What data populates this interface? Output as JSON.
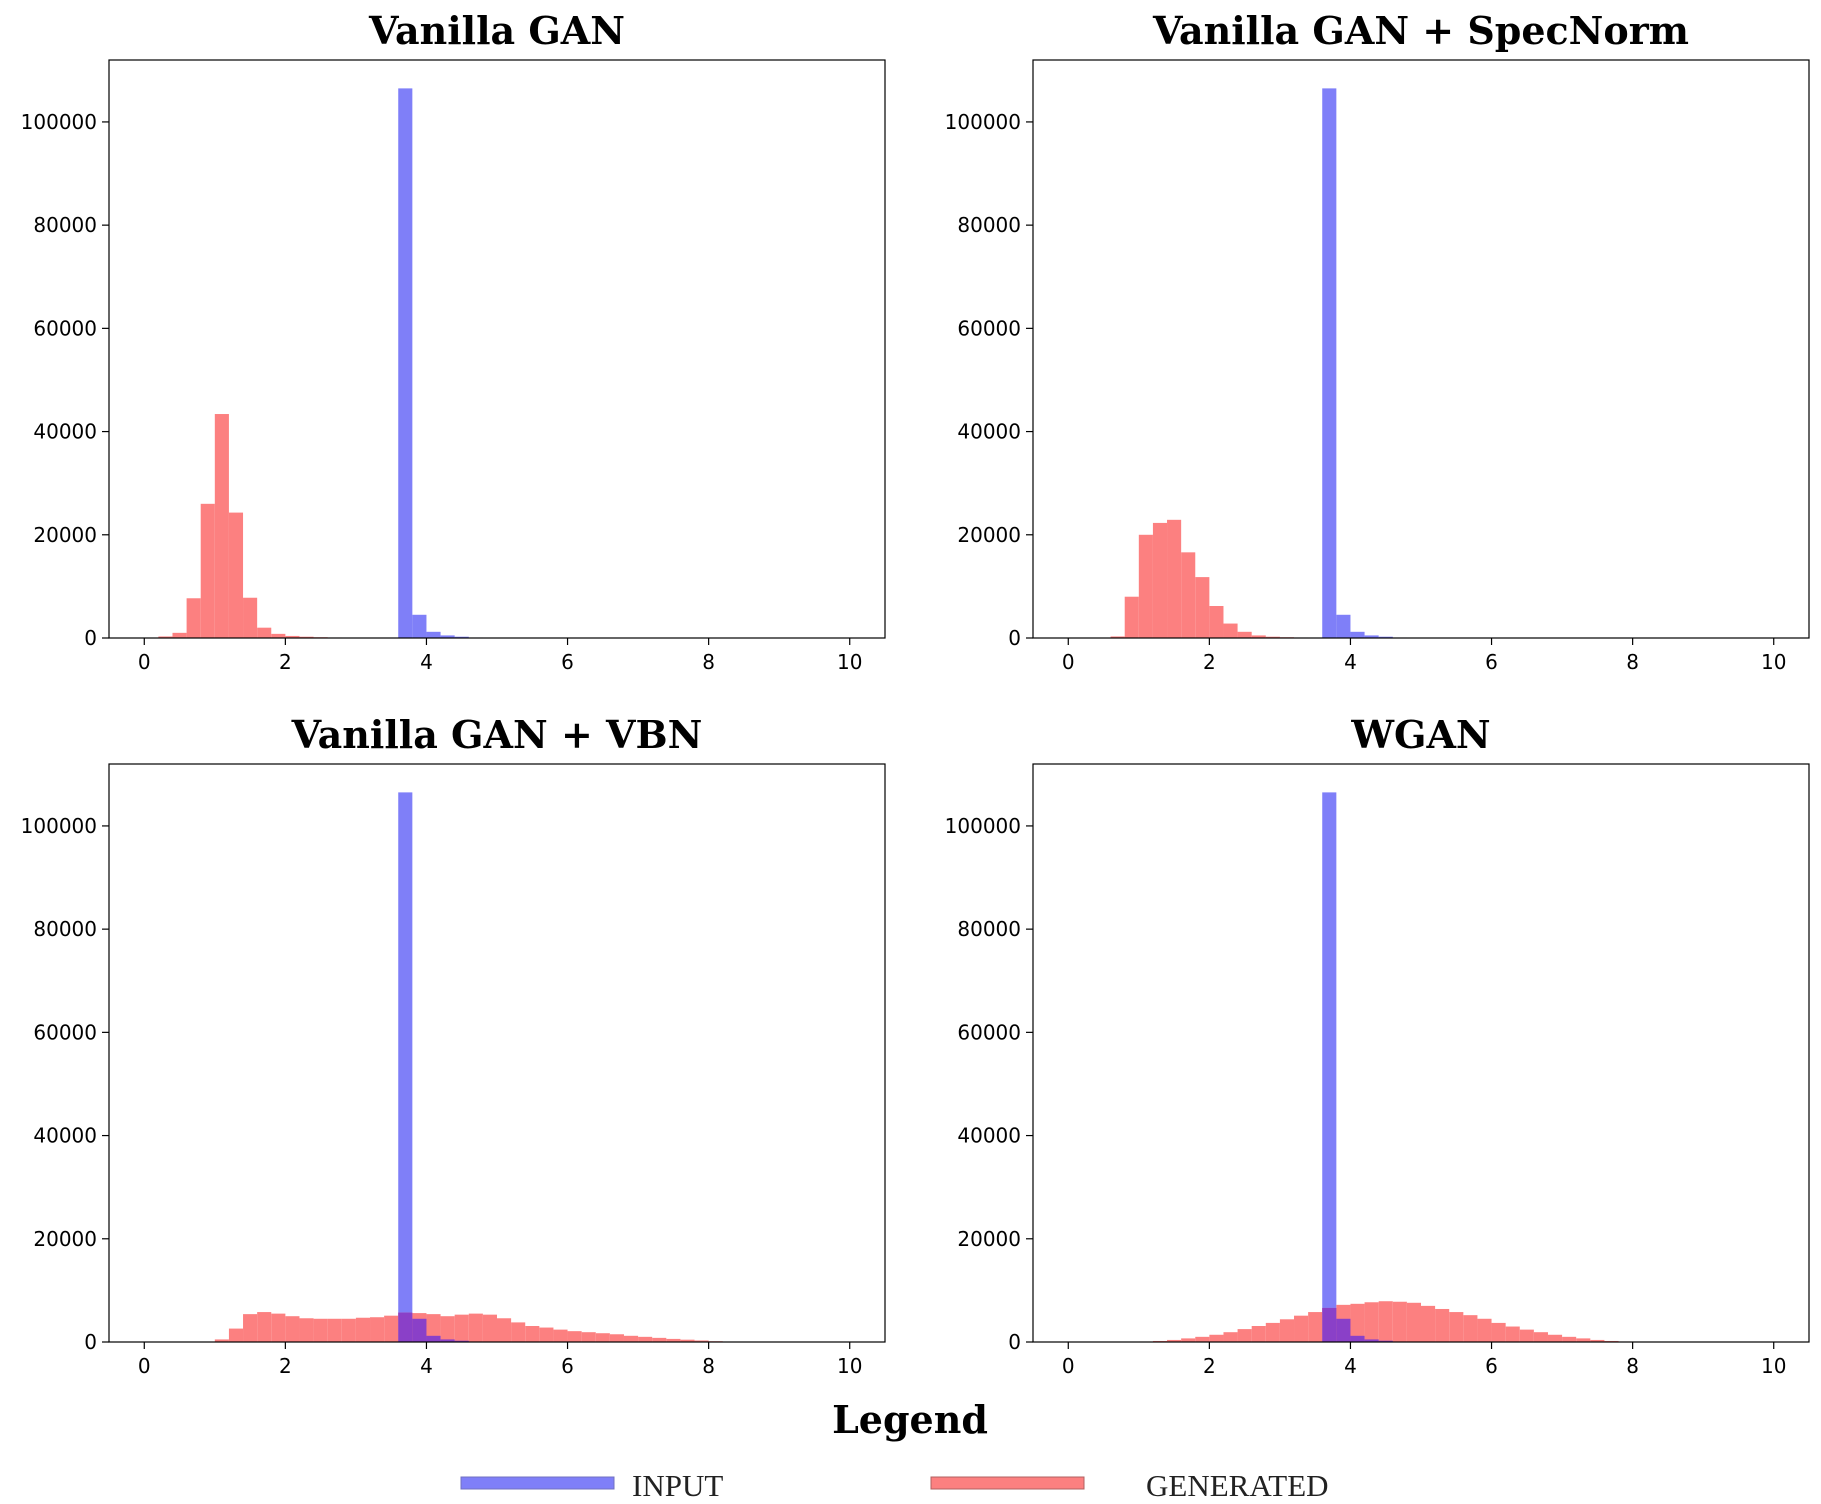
{
  "legend": {
    "title": "Legend",
    "entries": [
      {
        "label": "INPUT",
        "color": "#7f7ff8"
      },
      {
        "label": "GENERATED",
        "color": "#fc8080"
      }
    ]
  },
  "colors": {
    "input": "#7f7ff8",
    "generated": "#fc8080",
    "overlap": "#8a40c8"
  },
  "chart_data": [
    {
      "type": "bar",
      "title": "Vanilla GAN",
      "xlim": [
        -0.5,
        10.5
      ],
      "ylim": [
        0,
        112000
      ],
      "xticks": [
        "0",
        "2",
        "4",
        "6",
        "8",
        "10"
      ],
      "yticks": [
        "0",
        "20000",
        "40000",
        "60000",
        "80000",
        "100000"
      ],
      "bin_width": 0.2,
      "series": [
        {
          "name": "INPUT",
          "bins": [
            [
              3.7,
              106500
            ],
            [
              3.9,
              4500
            ],
            [
              4.1,
              1200
            ],
            [
              4.3,
              500
            ],
            [
              4.5,
              250
            ],
            [
              4.7,
              100
            ]
          ]
        },
        {
          "name": "GENERATED",
          "bins": [
            [
              0.3,
              300
            ],
            [
              0.5,
              1000
            ],
            [
              0.7,
              7700
            ],
            [
              0.9,
              26000
            ],
            [
              1.1,
              43400
            ],
            [
              1.3,
              24300
            ],
            [
              1.5,
              7800
            ],
            [
              1.7,
              2000
            ],
            [
              1.9,
              800
            ],
            [
              2.1,
              400
            ],
            [
              2.3,
              250
            ],
            [
              2.5,
              150
            ],
            [
              2.7,
              100
            ]
          ]
        }
      ]
    },
    {
      "type": "bar",
      "title": "Vanilla GAN + SpecNorm",
      "xlim": [
        -0.5,
        10.5
      ],
      "ylim": [
        0,
        112000
      ],
      "xticks": [
        "0",
        "2",
        "4",
        "6",
        "8",
        "10"
      ],
      "yticks": [
        "0",
        "20000",
        "40000",
        "60000",
        "80000",
        "100000"
      ],
      "bin_width": 0.2,
      "series": [
        {
          "name": "INPUT",
          "bins": [
            [
              3.7,
              106500
            ],
            [
              3.9,
              4500
            ],
            [
              4.1,
              1200
            ],
            [
              4.3,
              500
            ],
            [
              4.5,
              250
            ],
            [
              4.7,
              100
            ]
          ]
        },
        {
          "name": "GENERATED",
          "bins": [
            [
              0.7,
              300
            ],
            [
              0.9,
              8000
            ],
            [
              1.1,
              20000
            ],
            [
              1.3,
              22300
            ],
            [
              1.5,
              22900
            ],
            [
              1.7,
              16600
            ],
            [
              1.9,
              11800
            ],
            [
              2.1,
              6200
            ],
            [
              2.3,
              2800
            ],
            [
              2.5,
              1200
            ],
            [
              2.7,
              500
            ],
            [
              2.9,
              250
            ],
            [
              3.1,
              150
            ],
            [
              3.3,
              100
            ],
            [
              3.5,
              50
            ]
          ]
        }
      ]
    },
    {
      "type": "bar",
      "title": "Vanilla GAN + VBN",
      "xlim": [
        -0.5,
        10.5
      ],
      "ylim": [
        0,
        112000
      ],
      "xticks": [
        "0",
        "2",
        "4",
        "6",
        "8",
        "10"
      ],
      "yticks": [
        "0",
        "20000",
        "40000",
        "60000",
        "80000",
        "100000"
      ],
      "bin_width": 0.2,
      "series": [
        {
          "name": "INPUT",
          "bins": [
            [
              3.7,
              106500
            ],
            [
              3.9,
              4500
            ],
            [
              4.1,
              1200
            ],
            [
              4.3,
              500
            ],
            [
              4.5,
              250
            ],
            [
              4.7,
              100
            ]
          ]
        },
        {
          "name": "GENERATED",
          "bins": [
            [
              1.1,
              500
            ],
            [
              1.3,
              2600
            ],
            [
              1.5,
              5400
            ],
            [
              1.7,
              5800
            ],
            [
              1.9,
              5500
            ],
            [
              2.1,
              5000
            ],
            [
              2.3,
              4600
            ],
            [
              2.5,
              4500
            ],
            [
              2.7,
              4500
            ],
            [
              2.9,
              4500
            ],
            [
              3.1,
              4700
            ],
            [
              3.3,
              4800
            ],
            [
              3.5,
              5100
            ],
            [
              3.7,
              5700
            ],
            [
              3.9,
              5600
            ],
            [
              4.1,
              5400
            ],
            [
              4.3,
              5000
            ],
            [
              4.5,
              5300
            ],
            [
              4.7,
              5500
            ],
            [
              4.9,
              5300
            ],
            [
              5.1,
              4600
            ],
            [
              5.3,
              3800
            ],
            [
              5.5,
              3100
            ],
            [
              5.7,
              2800
            ],
            [
              5.9,
              2400
            ],
            [
              6.1,
              2100
            ],
            [
              6.3,
              1900
            ],
            [
              6.5,
              1700
            ],
            [
              6.7,
              1500
            ],
            [
              6.9,
              1200
            ],
            [
              7.1,
              1000
            ],
            [
              7.3,
              800
            ],
            [
              7.5,
              600
            ],
            [
              7.7,
              450
            ],
            [
              7.9,
              300
            ],
            [
              8.1,
              150
            ],
            [
              8.3,
              80
            ]
          ]
        }
      ]
    },
    {
      "type": "bar",
      "title": "WGAN",
      "xlim": [
        -0.5,
        10.5
      ],
      "ylim": [
        0,
        112000
      ],
      "xticks": [
        "0",
        "2",
        "4",
        "6",
        "8",
        "10"
      ],
      "yticks": [
        "0",
        "20000",
        "40000",
        "60000",
        "80000",
        "100000"
      ],
      "bin_width": 0.2,
      "series": [
        {
          "name": "INPUT",
          "bins": [
            [
              3.7,
              106500
            ],
            [
              3.9,
              4500
            ],
            [
              4.1,
              1200
            ],
            [
              4.3,
              500
            ],
            [
              4.5,
              250
            ],
            [
              4.7,
              100
            ]
          ]
        },
        {
          "name": "GENERATED",
          "bins": [
            [
              1.1,
              100
            ],
            [
              1.3,
              200
            ],
            [
              1.5,
              400
            ],
            [
              1.7,
              700
            ],
            [
              1.9,
              1000
            ],
            [
              2.1,
              1400
            ],
            [
              2.3,
              1900
            ],
            [
              2.5,
              2500
            ],
            [
              2.7,
              3100
            ],
            [
              2.9,
              3700
            ],
            [
              3.1,
              4400
            ],
            [
              3.3,
              5100
            ],
            [
              3.5,
              5800
            ],
            [
              3.7,
              6600
            ],
            [
              3.9,
              7200
            ],
            [
              4.1,
              7400
            ],
            [
              4.3,
              7700
            ],
            [
              4.5,
              7900
            ],
            [
              4.7,
              7800
            ],
            [
              4.9,
              7600
            ],
            [
              5.1,
              7000
            ],
            [
              5.3,
              6400
            ],
            [
              5.5,
              5800
            ],
            [
              5.7,
              5200
            ],
            [
              5.9,
              4500
            ],
            [
              6.1,
              3700
            ],
            [
              6.3,
              3000
            ],
            [
              6.5,
              2400
            ],
            [
              6.7,
              1900
            ],
            [
              6.9,
              1400
            ],
            [
              7.1,
              1000
            ],
            [
              7.3,
              700
            ],
            [
              7.5,
              400
            ],
            [
              7.7,
              200
            ],
            [
              7.9,
              100
            ]
          ]
        }
      ]
    }
  ]
}
